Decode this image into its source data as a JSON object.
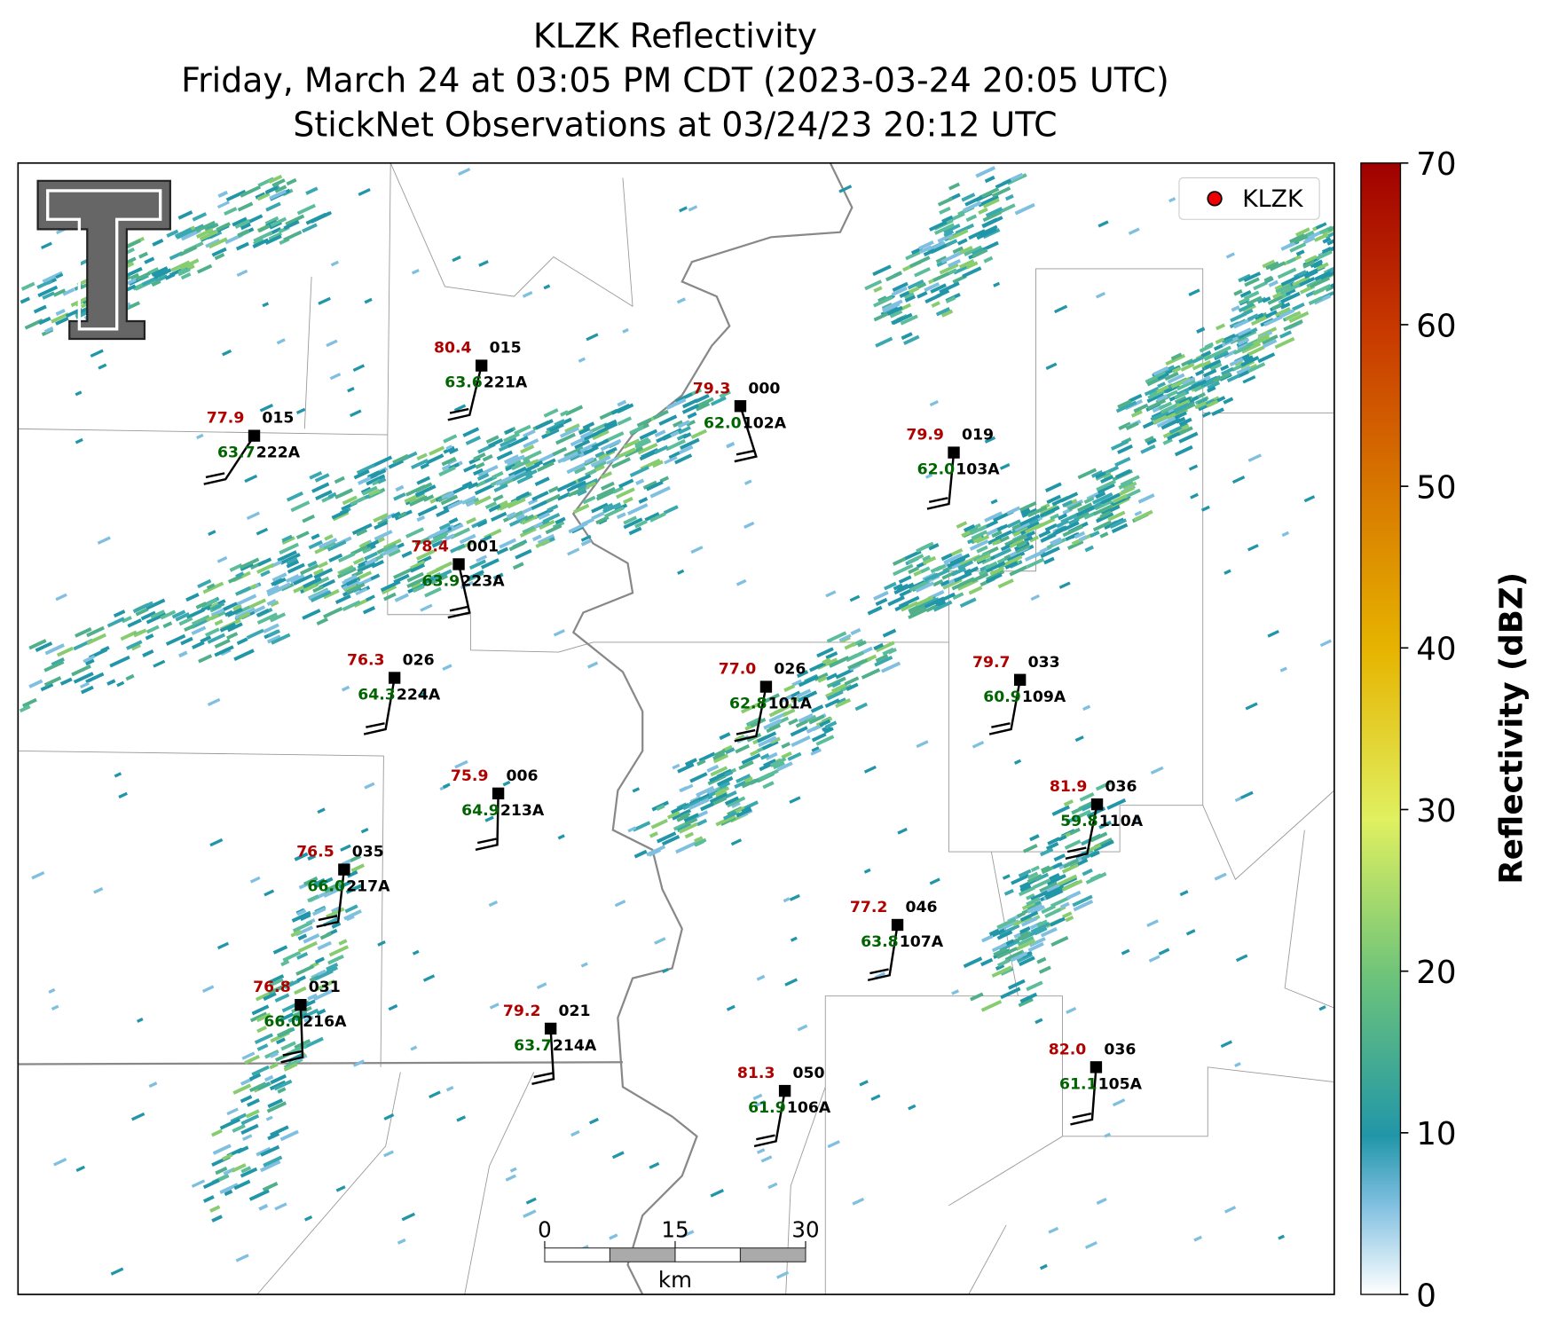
{
  "header": {
    "title": "KLZK Reflectivity",
    "subtitle_1": "Friday, March 24 at 03:05 PM CDT (2023-03-24 20:05 UTC)",
    "subtitle_2": "StickNet Observations at 03/24/23 20:12 UTC"
  },
  "legend": {
    "label": "KLZK"
  },
  "colorbar": {
    "label": "Reflectivity (dBZ)",
    "ticks": [
      0,
      10,
      20,
      30,
      40,
      50,
      60,
      70
    ]
  },
  "scale_bar": {
    "ticks": [
      0,
      15,
      30
    ],
    "unit": "km"
  },
  "stations": [
    {
      "id": "221A",
      "temperature": "80.4",
      "dewpoint": "63.6",
      "direction": "015"
    },
    {
      "id": "102A",
      "temperature": "79.3",
      "dewpoint": "62.0",
      "direction": "000"
    },
    {
      "id": "222A",
      "temperature": "77.9",
      "dewpoint": "63.7",
      "direction": "015"
    },
    {
      "id": "103A",
      "temperature": "79.9",
      "dewpoint": "62.0",
      "direction": "019"
    },
    {
      "id": "223A",
      "temperature": "78.4",
      "dewpoint": "63.9",
      "direction": "001"
    },
    {
      "id": "224A",
      "temperature": "76.3",
      "dewpoint": "64.3",
      "direction": "026"
    },
    {
      "id": "101A",
      "temperature": "77.0",
      "dewpoint": "62.8",
      "direction": "026"
    },
    {
      "id": "109A",
      "temperature": "79.7",
      "dewpoint": "60.9",
      "direction": "033"
    },
    {
      "id": "213A",
      "temperature": "75.9",
      "dewpoint": "64.9",
      "direction": "006"
    },
    {
      "id": "110A",
      "temperature": "81.9",
      "dewpoint": "59.8",
      "direction": "036"
    },
    {
      "id": "217A",
      "temperature": "76.5",
      "dewpoint": "66.0",
      "direction": "035"
    },
    {
      "id": "107A",
      "temperature": "77.2",
      "dewpoint": "63.8",
      "direction": "046"
    },
    {
      "id": "216A",
      "temperature": "76.8",
      "dewpoint": "66.0",
      "direction": "031"
    },
    {
      "id": "214A",
      "temperature": "79.2",
      "dewpoint": "63.7",
      "direction": "021"
    },
    {
      "id": "106A",
      "temperature": "81.3",
      "dewpoint": "61.9",
      "direction": "050"
    },
    {
      "id": "105A",
      "temperature": "82.0",
      "dewpoint": "61.1",
      "direction": "036"
    }
  ]
}
